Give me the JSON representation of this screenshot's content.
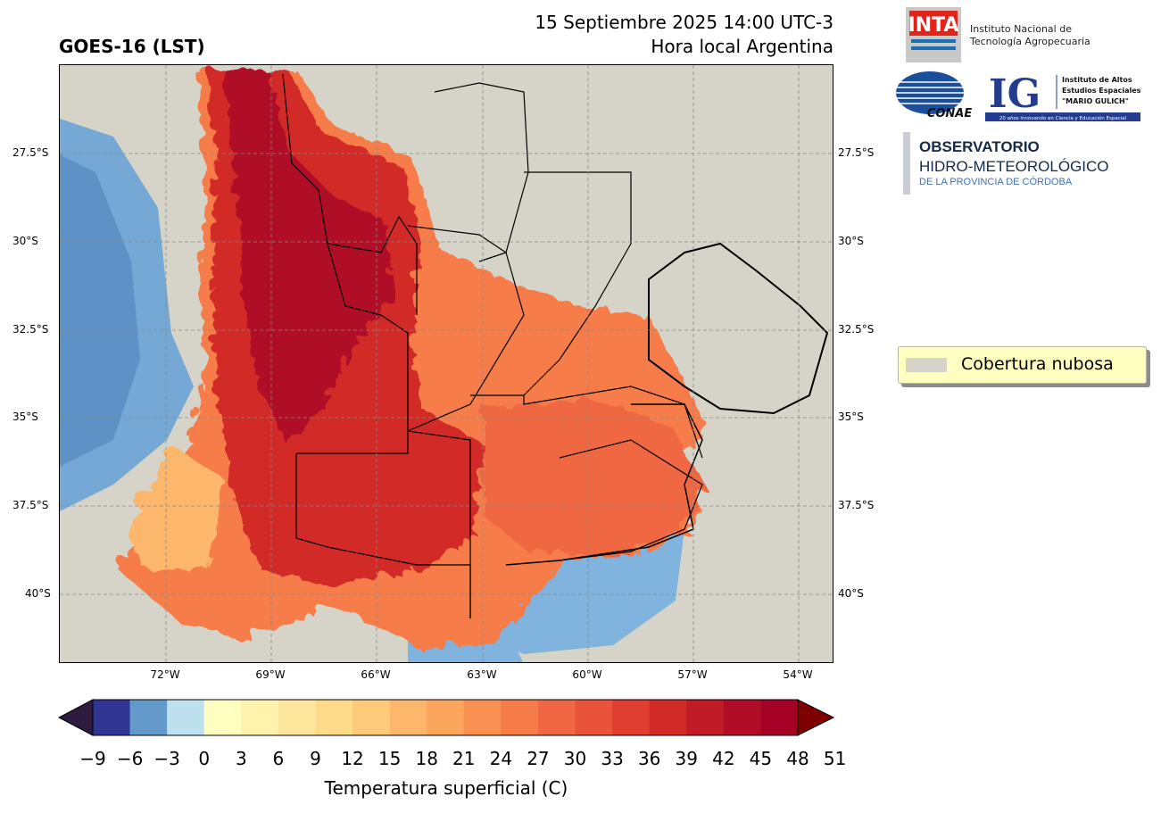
{
  "header": {
    "title": "GOES-16 (LST)",
    "date_line": "15 Septiembre 2025 14:00 UTC-3",
    "local_line": "Hora local Argentina"
  },
  "axes": {
    "lat_ticks": [
      "27.5°S",
      "30°S",
      "32.5°S",
      "35°S",
      "37.5°S",
      "40°S"
    ],
    "lon_ticks": [
      "72°W",
      "69°W",
      "66°W",
      "63°W",
      "60°W",
      "57°W",
      "54°W"
    ]
  },
  "legend": {
    "label": "Cobertura nubosa",
    "color": "#d6d4c8"
  },
  "colorbar": {
    "title": "Temperatura superficial (C)",
    "ticks": [
      "−9",
      "−6",
      "−3",
      "0",
      "3",
      "6",
      "9",
      "12",
      "15",
      "18",
      "21",
      "24",
      "27",
      "30",
      "33",
      "36",
      "39",
      "42",
      "45",
      "48",
      "51"
    ],
    "under_color": "#2d1a3e",
    "over_color": "#7f0000",
    "colors": [
      "#313695",
      "#649ac9",
      "#bde0ee",
      "#ffffc2",
      "#fff2ad",
      "#fee79c",
      "#fedb8a",
      "#fdc97b",
      "#fdb76c",
      "#fca55d",
      "#f99153",
      "#f67d4a",
      "#f06843",
      "#e8533a",
      "#df3e31",
      "#d22b27",
      "#c01c27",
      "#b00e26",
      "#a50026"
    ]
  },
  "logos": {
    "inta_mark": "INTA",
    "inta_line1": "Instituto Nacional de",
    "inta_line2": "Tecnología Agropecuaria",
    "conae_mark": "CONAE",
    "ig_mark": "IG",
    "ig_line1": "Instituto de Altos",
    "ig_line2": "Estudios Espaciales",
    "ig_line3": "\"MARIO GULICH\"",
    "ig_tagline": "20 años innovando en Ciencia y Educación Espacial",
    "obs_line1": "OBSERVATORIO",
    "obs_line2": "HIDRO-METEOROLÓGICO",
    "obs_line3": "DE LA PROVINCIA DE CÓRDOBA"
  }
}
